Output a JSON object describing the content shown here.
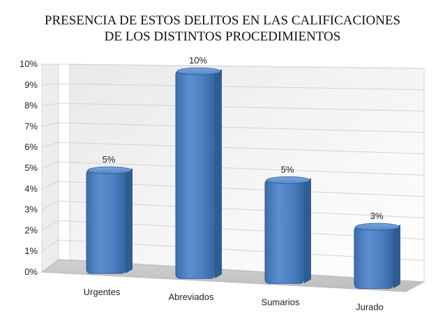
{
  "chart_data": {
    "type": "bar",
    "title_line1": "PRESENCIA DE ESTOS DELITOS EN LAS CALIFICACIONES",
    "title_line2": "DE LOS DISTINTOS PROCEDIMIENTOS",
    "categories": [
      "Urgentes",
      "Abreviados",
      "Sumarios",
      "Jurado"
    ],
    "values": [
      5,
      10,
      5,
      3
    ],
    "data_labels": [
      "5%",
      "10%",
      "5%",
      "3%"
    ],
    "ylim": [
      0,
      10
    ],
    "yticks": [
      "0%",
      "1%",
      "2%",
      "3%",
      "4%",
      "5%",
      "6%",
      "7%",
      "8%",
      "9%",
      "10%"
    ],
    "grid": true,
    "three_d": true,
    "bar_color": "#4f81bd",
    "bar_edge_color": "#2c5a96"
  }
}
